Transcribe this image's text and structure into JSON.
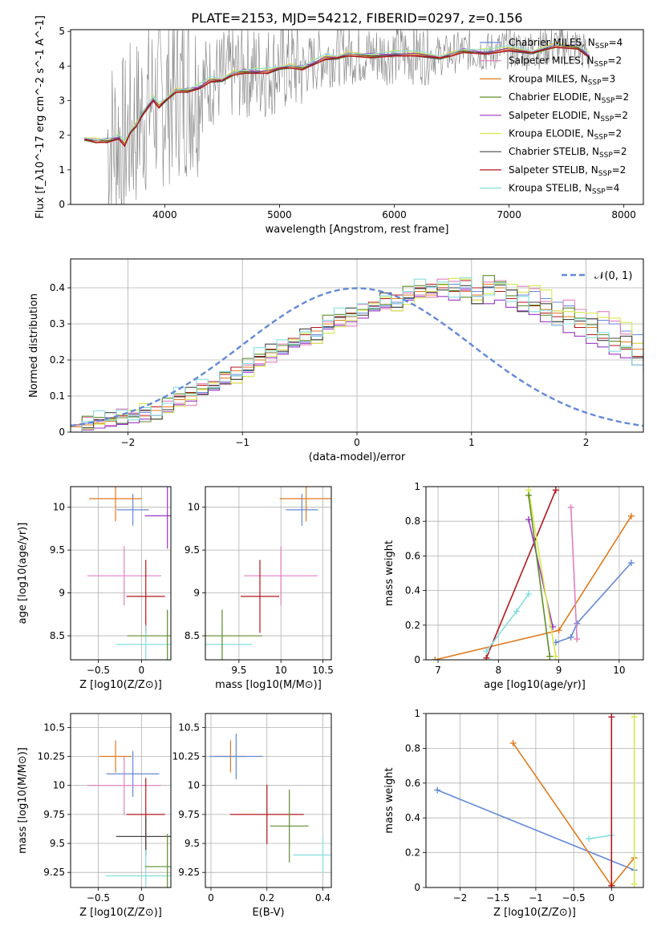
{
  "figure": {
    "title": "PLATE=2153, MJD=54212, FIBERID=0297, z=0.156"
  },
  "legend": [
    {
      "model": "Chabrier MILES",
      "nssp": "4",
      "color": "#6489d8"
    },
    {
      "model": "Salpeter MILES",
      "nssp": "2",
      "color": "#e17fbe"
    },
    {
      "model": "Kroupa MILES",
      "nssp": "3",
      "color": "#e07a1e"
    },
    {
      "model": "Chabrier ELODIE",
      "nssp": "2",
      "color": "#5f8d2d"
    },
    {
      "model": "Salpeter ELODIE",
      "nssp": "2",
      "color": "#9a37c4"
    },
    {
      "model": "Kroupa ELODIE",
      "nssp": "2",
      "color": "#d7e84a"
    },
    {
      "model": "Chabrier STELIB",
      "nssp": "2",
      "color": "#464646"
    },
    {
      "model": "Salpeter STELIB",
      "nssp": "2",
      "color": "#b3161b"
    },
    {
      "model": "Kroupa STELIB",
      "nssp": "4",
      "color": "#86dde0"
    }
  ],
  "chart_data": [
    {
      "id": "spectrum",
      "type": "line",
      "xlabel": "wavelength [Angstrom, rest frame]",
      "ylabel": "Flux [f_λ10^-17 erg cm^-2 s^-1 A^-1]",
      "xlim": [
        3180,
        8170
      ],
      "ylim": [
        0,
        5.05
      ],
      "xticks": [
        4000,
        5000,
        6000,
        7000,
        8000
      ],
      "yticks": [
        0,
        1,
        2,
        3,
        4,
        5
      ],
      "data_color": "#808080",
      "model_x": [
        3300,
        3400,
        3500,
        3600,
        3650,
        3700,
        3750,
        3800,
        3900,
        3950,
        4000,
        4100,
        4200,
        4300,
        4400,
        4500,
        4600,
        4700,
        4800,
        4900,
        5000,
        5100,
        5200,
        5300,
        5400,
        5500,
        5600,
        5800,
        6000,
        6200,
        6400,
        6500,
        6600,
        6800,
        7000,
        7200,
        7400,
        7600,
        7700
      ],
      "model_y": [
        1.95,
        1.85,
        1.85,
        1.95,
        1.75,
        2.15,
        2.3,
        2.6,
        3.05,
        2.85,
        3.05,
        3.3,
        3.3,
        3.4,
        3.6,
        3.65,
        3.8,
        3.85,
        3.85,
        3.85,
        4.0,
        4.0,
        3.95,
        4.1,
        4.25,
        4.3,
        4.35,
        4.3,
        4.35,
        4.35,
        4.3,
        4.35,
        4.45,
        4.4,
        4.5,
        4.45,
        4.6,
        4.55,
        4.3
      ]
    },
    {
      "id": "residuals",
      "type": "area",
      "xlabel": "(data-model)/error",
      "ylabel": "Normed distribution",
      "xlim": [
        -2.5,
        2.5
      ],
      "ylim": [
        0,
        0.48
      ],
      "xticks": [
        -2,
        -1,
        0,
        1,
        2
      ],
      "yticks": [
        0.0,
        0.1,
        0.2,
        0.3,
        0.4
      ],
      "bin_width": 0.1,
      "reference_label": "𝒩(0, 1)",
      "reference_color": "#6489d8",
      "histograms": [
        {
          "series": 0,
          "values": [
            0.02,
            0.025,
            0.03,
            0.035,
            0.04,
            0.045,
            0.055,
            0.06,
            0.07,
            0.08,
            0.09,
            0.11,
            0.12,
            0.14,
            0.16,
            0.17,
            0.19,
            0.21,
            0.22,
            0.24,
            0.25,
            0.27,
            0.29,
            0.3,
            0.31,
            0.33,
            0.34,
            0.35,
            0.36,
            0.37,
            0.38,
            0.39,
            0.4,
            0.41,
            0.4,
            0.39,
            0.4,
            0.42,
            0.41,
            0.38,
            0.39,
            0.37,
            0.36,
            0.35,
            0.34,
            0.33,
            0.31,
            0.3,
            0.28,
            0.27,
            0.25
          ]
        },
        {
          "series": 2,
          "values": [
            0.015,
            0.02,
            0.025,
            0.03,
            0.04,
            0.05,
            0.045,
            0.06,
            0.07,
            0.09,
            0.1,
            0.12,
            0.13,
            0.15,
            0.17,
            0.18,
            0.2,
            0.22,
            0.24,
            0.25,
            0.27,
            0.28,
            0.3,
            0.31,
            0.32,
            0.34,
            0.35,
            0.37,
            0.37,
            0.38,
            0.39,
            0.38,
            0.41,
            0.4,
            0.39,
            0.38,
            0.41,
            0.4,
            0.37,
            0.35,
            0.36,
            0.34,
            0.33,
            0.32,
            0.3,
            0.29,
            0.27,
            0.26,
            0.25,
            0.23,
            0.21
          ]
        },
        {
          "series": 7,
          "values": [
            0.02,
            0.03,
            0.035,
            0.04,
            0.045,
            0.05,
            0.06,
            0.07,
            0.08,
            0.1,
            0.11,
            0.13,
            0.14,
            0.16,
            0.18,
            0.19,
            0.21,
            0.23,
            0.24,
            0.26,
            0.27,
            0.29,
            0.31,
            0.32,
            0.33,
            0.34,
            0.36,
            0.37,
            0.38,
            0.39,
            0.4,
            0.41,
            0.4,
            0.39,
            0.42,
            0.4,
            0.38,
            0.39,
            0.37,
            0.36,
            0.35,
            0.33,
            0.32,
            0.3,
            0.29,
            0.27,
            0.26,
            0.24,
            0.23,
            0.21,
            0.2
          ]
        }
      ]
    },
    {
      "id": "Z-age",
      "type": "scatter",
      "xlabel": "Z [log10(Z/Z⊙)]",
      "ylabel": "age [log10(age/yr)]",
      "xlim": [
        -0.82,
        0.34
      ],
      "ylim": [
        8.22,
        10.24
      ],
      "xticks": [
        -0.5,
        0.0
      ],
      "yticks": [
        8.5,
        9.0,
        9.5,
        10.0
      ],
      "points": [
        {
          "series": 0,
          "x": -0.1,
          "y": 9.97
        },
        {
          "series": 2,
          "x": -0.3,
          "y": 10.1
        },
        {
          "series": 1,
          "x": -0.2,
          "y": 9.2
        },
        {
          "series": 7,
          "x": 0.05,
          "y": 8.96
        },
        {
          "series": 8,
          "x": 0.05,
          "y": 8.4
        },
        {
          "series": 3,
          "x": 0.3,
          "y": 8.5
        },
        {
          "series": 4,
          "x": 0.3,
          "y": 9.9
        }
      ]
    },
    {
      "id": "mass-age",
      "type": "scatter",
      "xlabel": "mass [log10(M/M⊙)]",
      "ylabel": "",
      "xlim": [
        9.1,
        10.6
      ],
      "ylim": [
        8.22,
        10.24
      ],
      "xticks": [
        9.5,
        10.0,
        10.5
      ],
      "yticks": [
        8.5,
        9.0,
        9.5,
        10.0
      ],
      "points": [
        {
          "series": 0,
          "x": 10.25,
          "y": 9.97
        },
        {
          "series": 2,
          "x": 10.3,
          "y": 10.1
        },
        {
          "series": 1,
          "x": 10.0,
          "y": 9.2
        },
        {
          "series": 7,
          "x": 9.75,
          "y": 8.96
        },
        {
          "series": 8,
          "x": 9.3,
          "y": 8.4
        },
        {
          "series": 3,
          "x": 9.3,
          "y": 8.5
        }
      ]
    },
    {
      "id": "age-weight",
      "type": "line",
      "xlabel": "age [log10(age/yr)]",
      "ylabel": "mass weight",
      "xlim": [
        6.8,
        10.4
      ],
      "ylim": [
        0,
        1.0
      ],
      "xticks": [
        7,
        8,
        9,
        10
      ],
      "yticks": [
        0.0,
        0.2,
        0.4,
        0.6,
        0.8,
        1.0
      ],
      "series": [
        {
          "series": 2,
          "x": [
            6.95,
            9.0,
            10.2
          ],
          "y": [
            0.0,
            0.17,
            0.83
          ]
        },
        {
          "series": 0,
          "x": [
            8.95,
            9.2,
            9.3,
            10.2
          ],
          "y": [
            0.1,
            0.13,
            0.21,
            0.56
          ]
        },
        {
          "series": 7,
          "x": [
            7.8,
            8.95
          ],
          "y": [
            0.01,
            0.98
          ]
        },
        {
          "series": 8,
          "x": [
            7.8,
            8.3,
            8.5
          ],
          "y": [
            0.05,
            0.28,
            0.38
          ]
        },
        {
          "series": 1,
          "x": [
            9.2,
            9.3
          ],
          "y": [
            0.88,
            0.12
          ]
        },
        {
          "series": 4,
          "x": [
            8.5,
            8.9
          ],
          "y": [
            0.81,
            0.19
          ]
        },
        {
          "series": 5,
          "x": [
            8.5,
            8.95
          ],
          "y": [
            0.98,
            0.02
          ]
        },
        {
          "series": 3,
          "x": [
            8.5,
            8.85
          ],
          "y": [
            0.95,
            0.02
          ]
        }
      ]
    },
    {
      "id": "Z-mass",
      "type": "scatter",
      "xlabel": "Z [log10(Z/Z⊙)]",
      "ylabel": "mass [log10(M/M⊙)]",
      "xlim": [
        -0.82,
        0.34
      ],
      "ylim": [
        9.12,
        10.62
      ],
      "xticks": [
        -0.5,
        0.0
      ],
      "yticks": [
        9.25,
        9.5,
        9.75,
        10.0,
        10.25,
        10.5
      ],
      "points": [
        {
          "series": 2,
          "x": -0.3,
          "y": 10.25
        },
        {
          "series": 0,
          "x": -0.1,
          "y": 10.1
        },
        {
          "series": 1,
          "x": -0.2,
          "y": 10.0
        },
        {
          "series": 7,
          "x": 0.05,
          "y": 9.75
        },
        {
          "series": 6,
          "x": 0.05,
          "y": 9.56
        },
        {
          "series": 8,
          "x": 0.05,
          "y": 9.22
        },
        {
          "series": 3,
          "x": 0.3,
          "y": 9.3
        }
      ]
    },
    {
      "id": "ebv-mass",
      "type": "scatter",
      "xlabel": "E(B-V)",
      "ylabel": "",
      "xlim": [
        -0.02,
        0.43
      ],
      "ylim": [
        9.12,
        10.62
      ],
      "xticks": [
        0.0,
        0.2,
        0.4
      ],
      "yticks": [
        9.25,
        9.5,
        9.75,
        10.0,
        10.25,
        10.5
      ],
      "points": [
        {
          "series": 2,
          "x": 0.07,
          "y": 10.25
        },
        {
          "series": 0,
          "x": 0.09,
          "y": 10.25
        },
        {
          "series": 7,
          "x": 0.2,
          "y": 9.75
        },
        {
          "series": 3,
          "x": 0.28,
          "y": 9.65
        },
        {
          "series": 8,
          "x": 0.4,
          "y": 9.4
        }
      ]
    },
    {
      "id": "Z-weight",
      "type": "line",
      "xlabel": "Z [log10(Z/Z⊙)]",
      "ylabel": "mass weight",
      "xlim": [
        -2.45,
        0.42
      ],
      "ylim": [
        0,
        1.0
      ],
      "xticks": [
        -2.0,
        -1.5,
        -1.0,
        -0.5,
        0.0
      ],
      "yticks": [
        0.0,
        0.2,
        0.4,
        0.6,
        0.8,
        1.0
      ],
      "series": [
        {
          "series": 0,
          "x": [
            -2.3,
            0.3
          ],
          "y": [
            0.56,
            0.1
          ]
        },
        {
          "series": 2,
          "x": [
            -1.3,
            0.0,
            0.3
          ],
          "y": [
            0.83,
            0.01,
            0.17
          ]
        },
        {
          "series": 8,
          "x": [
            -0.3,
            0.0
          ],
          "y": [
            0.28,
            0.3
          ]
        },
        {
          "series": 7,
          "x": [
            0.0,
            0.0
          ],
          "y": [
            0.01,
            0.98
          ]
        },
        {
          "series": 5,
          "x": [
            0.3,
            0.3
          ],
          "y": [
            0.02,
            0.98
          ]
        }
      ]
    }
  ]
}
